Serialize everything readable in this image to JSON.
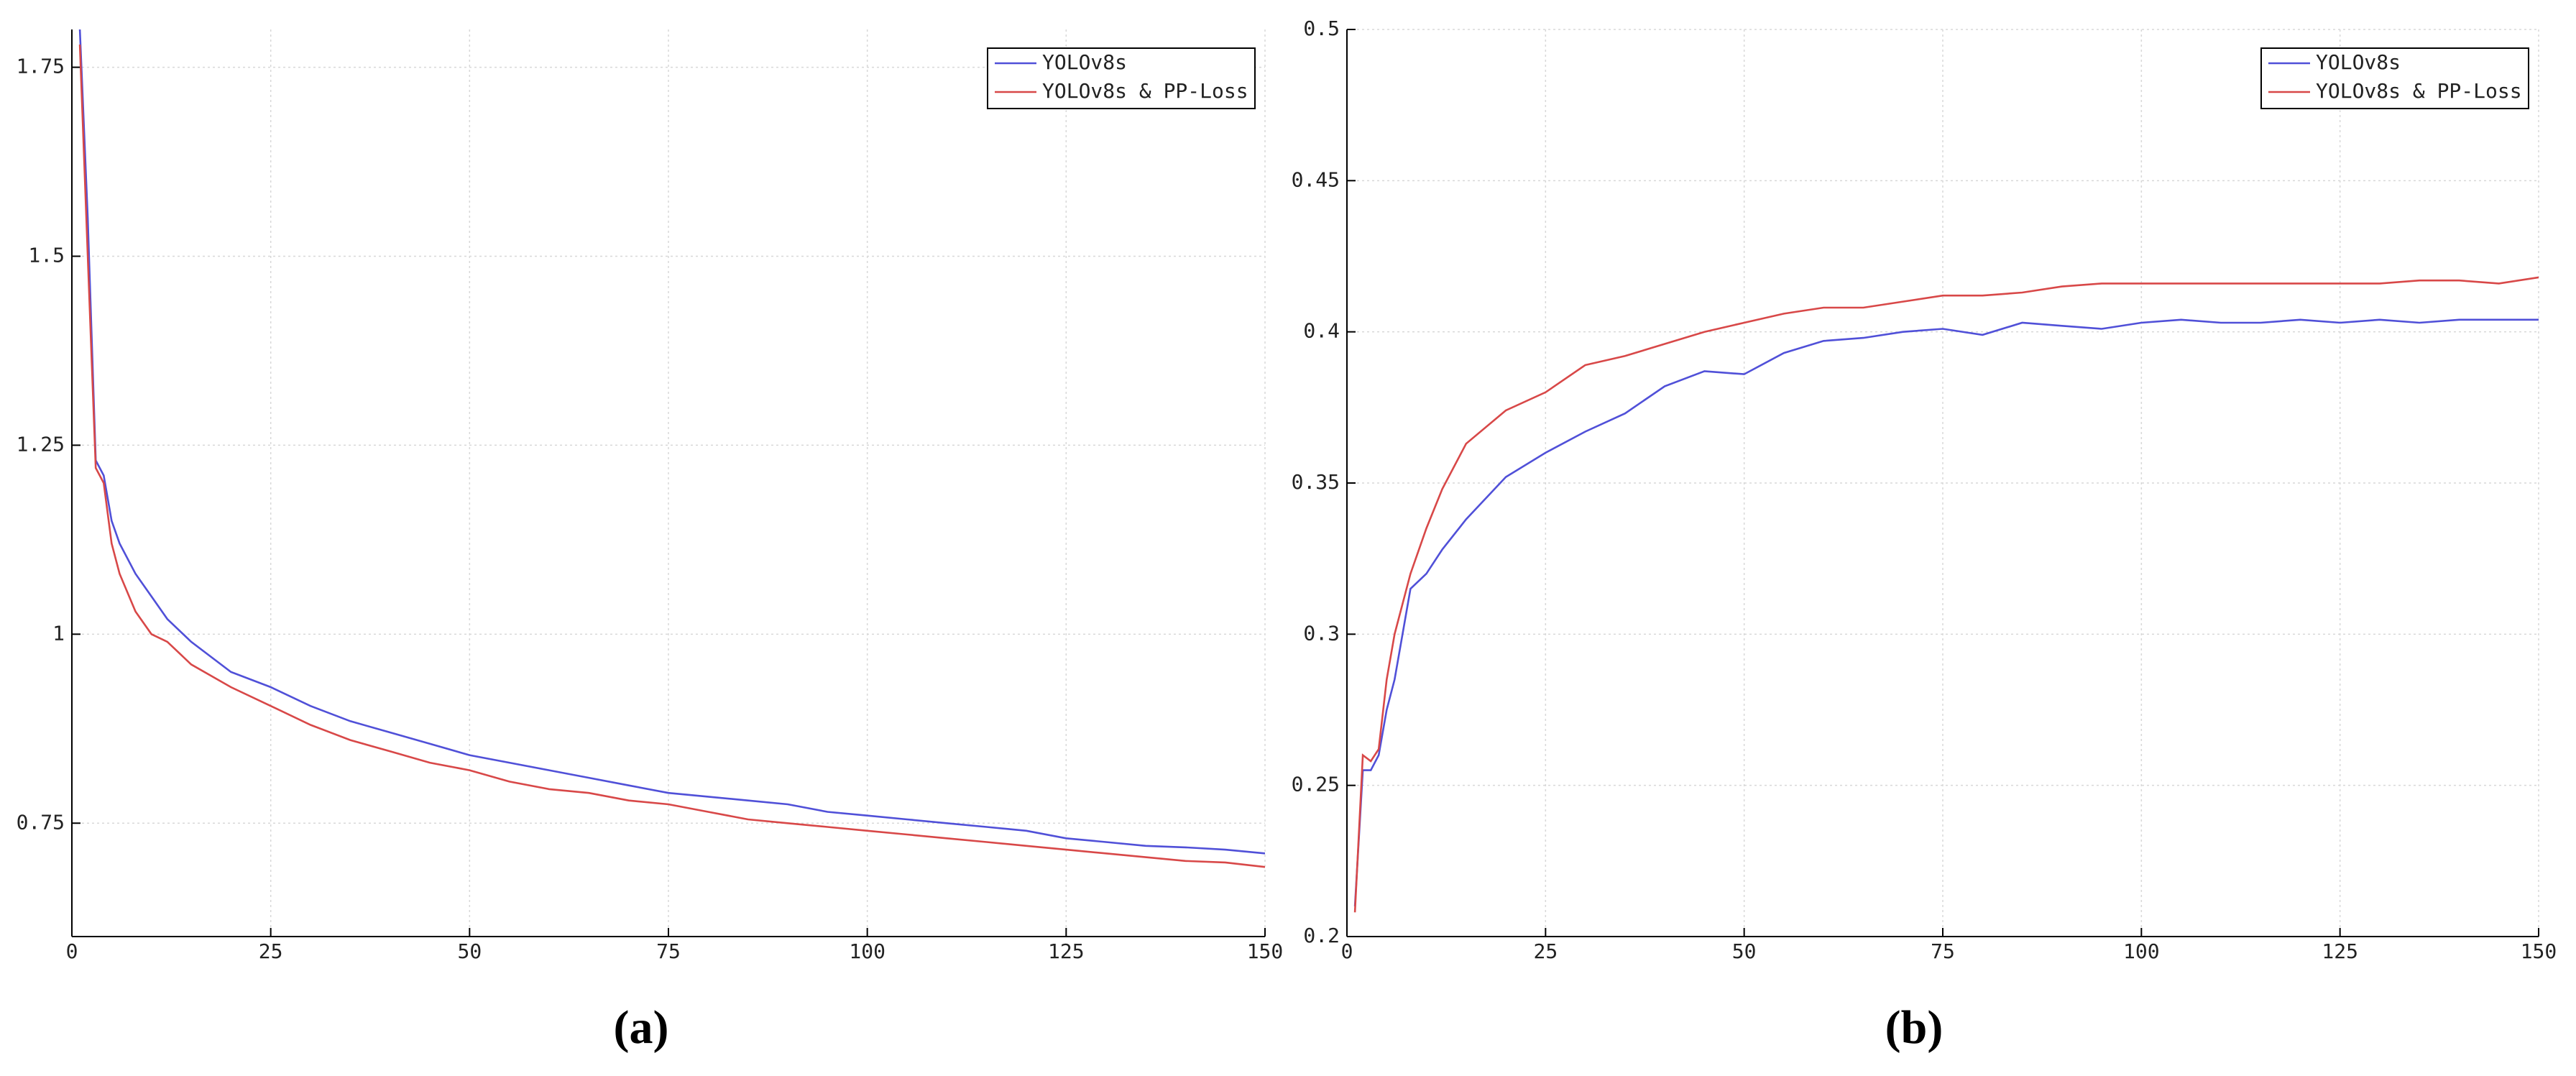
{
  "chart_data": [
    {
      "type": "line",
      "caption": "(a)",
      "x": [
        1,
        2,
        3,
        4,
        5,
        6,
        8,
        10,
        12,
        15,
        20,
        25,
        30,
        35,
        40,
        45,
        50,
        55,
        60,
        65,
        70,
        75,
        80,
        85,
        90,
        95,
        100,
        105,
        110,
        115,
        120,
        125,
        130,
        135,
        140,
        145,
        150
      ],
      "series": [
        {
          "name": "YOLOv8s",
          "color": "#5050d8",
          "values": [
            1.8,
            1.55,
            1.23,
            1.21,
            1.15,
            1.12,
            1.08,
            1.05,
            1.02,
            0.99,
            0.95,
            0.93,
            0.905,
            0.885,
            0.87,
            0.855,
            0.84,
            0.83,
            0.82,
            0.81,
            0.8,
            0.79,
            0.785,
            0.78,
            0.775,
            0.765,
            0.76,
            0.755,
            0.75,
            0.745,
            0.74,
            0.73,
            0.725,
            0.72,
            0.718,
            0.715,
            0.71
          ]
        },
        {
          "name": "YOLOv8s & PP-Loss",
          "color": "#d84848",
          "values": [
            1.78,
            1.5,
            1.22,
            1.2,
            1.12,
            1.08,
            1.03,
            1.0,
            0.99,
            0.96,
            0.93,
            0.905,
            0.88,
            0.86,
            0.845,
            0.83,
            0.82,
            0.805,
            0.795,
            0.79,
            0.78,
            0.775,
            0.765,
            0.755,
            0.75,
            0.745,
            0.74,
            0.735,
            0.73,
            0.725,
            0.72,
            0.715,
            0.71,
            0.705,
            0.7,
            0.698,
            0.692
          ]
        }
      ],
      "xlim": [
        0,
        150
      ],
      "xticks": [
        0,
        25,
        50,
        75,
        100,
        125,
        150
      ],
      "ylim": [
        0.6,
        1.8
      ],
      "yticks": [
        0.75,
        1,
        1.25,
        1.5,
        1.75
      ],
      "grid": true,
      "legend": "upper right"
    },
    {
      "type": "line",
      "caption": "(b)",
      "x": [
        1,
        2,
        3,
        4,
        5,
        6,
        8,
        10,
        12,
        15,
        20,
        25,
        30,
        35,
        40,
        45,
        50,
        55,
        60,
        65,
        70,
        75,
        80,
        85,
        90,
        95,
        100,
        105,
        110,
        115,
        120,
        125,
        130,
        135,
        140,
        145,
        150
      ],
      "series": [
        {
          "name": "YOLOv8s",
          "color": "#5050d8",
          "values": [
            0.21,
            0.255,
            0.255,
            0.26,
            0.275,
            0.285,
            0.315,
            0.32,
            0.328,
            0.338,
            0.352,
            0.36,
            0.367,
            0.373,
            0.382,
            0.387,
            0.386,
            0.393,
            0.397,
            0.398,
            0.4,
            0.401,
            0.399,
            0.403,
            0.402,
            0.401,
            0.403,
            0.404,
            0.403,
            0.403,
            0.404,
            0.403,
            0.404,
            0.403,
            0.404,
            0.404,
            0.404
          ]
        },
        {
          "name": "YOLOv8s & PP-Loss",
          "color": "#d84848",
          "values": [
            0.208,
            0.26,
            0.258,
            0.262,
            0.285,
            0.3,
            0.32,
            0.335,
            0.348,
            0.363,
            0.374,
            0.38,
            0.389,
            0.392,
            0.396,
            0.4,
            0.403,
            0.406,
            0.408,
            0.408,
            0.41,
            0.412,
            0.412,
            0.413,
            0.415,
            0.416,
            0.416,
            0.416,
            0.416,
            0.416,
            0.416,
            0.416,
            0.416,
            0.417,
            0.417,
            0.416,
            0.418
          ]
        }
      ],
      "xlim": [
        0,
        150
      ],
      "xticks": [
        0,
        25,
        50,
        75,
        100,
        125,
        150
      ],
      "ylim": [
        0.2,
        0.5
      ],
      "yticks": [
        0.2,
        0.25,
        0.3,
        0.35,
        0.4,
        0.45,
        0.5
      ],
      "grid": true,
      "legend": "upper right"
    }
  ]
}
